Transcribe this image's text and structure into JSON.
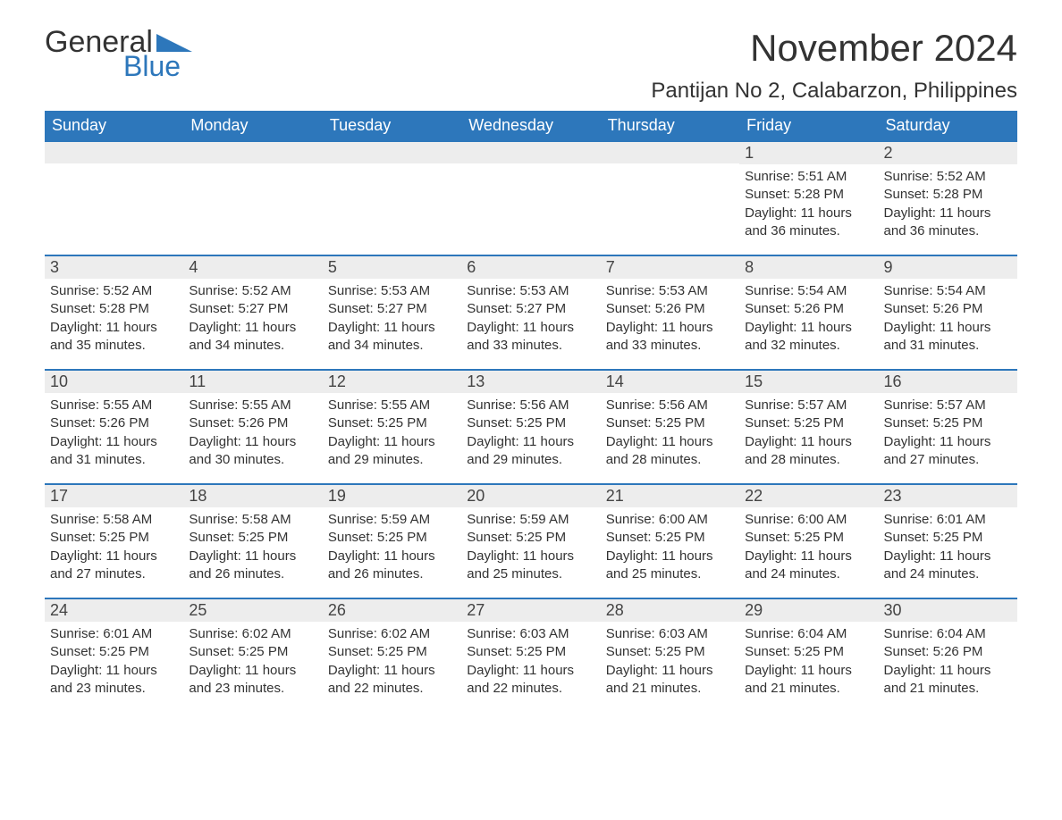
{
  "logo": {
    "text1": "General",
    "text2": "Blue",
    "accent": "#2d77bb"
  },
  "title": "November 2024",
  "location": "Pantijan No 2, Calabarzon, Philippines",
  "headers": [
    "Sunday",
    "Monday",
    "Tuesday",
    "Wednesday",
    "Thursday",
    "Friday",
    "Saturday"
  ],
  "colors": {
    "header_bg": "#2d77bb",
    "header_fg": "#ffffff",
    "daybar_bg": "#ededed",
    "daybar_border": "#2d77bb",
    "page_bg": "#ffffff",
    "text": "#333333"
  },
  "weeks": [
    [
      null,
      null,
      null,
      null,
      null,
      {
        "n": "1",
        "sunrise": "5:51 AM",
        "sunset": "5:28 PM",
        "daylight": "11 hours and 36 minutes."
      },
      {
        "n": "2",
        "sunrise": "5:52 AM",
        "sunset": "5:28 PM",
        "daylight": "11 hours and 36 minutes."
      }
    ],
    [
      {
        "n": "3",
        "sunrise": "5:52 AM",
        "sunset": "5:28 PM",
        "daylight": "11 hours and 35 minutes."
      },
      {
        "n": "4",
        "sunrise": "5:52 AM",
        "sunset": "5:27 PM",
        "daylight": "11 hours and 34 minutes."
      },
      {
        "n": "5",
        "sunrise": "5:53 AM",
        "sunset": "5:27 PM",
        "daylight": "11 hours and 34 minutes."
      },
      {
        "n": "6",
        "sunrise": "5:53 AM",
        "sunset": "5:27 PM",
        "daylight": "11 hours and 33 minutes."
      },
      {
        "n": "7",
        "sunrise": "5:53 AM",
        "sunset": "5:26 PM",
        "daylight": "11 hours and 33 minutes."
      },
      {
        "n": "8",
        "sunrise": "5:54 AM",
        "sunset": "5:26 PM",
        "daylight": "11 hours and 32 minutes."
      },
      {
        "n": "9",
        "sunrise": "5:54 AM",
        "sunset": "5:26 PM",
        "daylight": "11 hours and 31 minutes."
      }
    ],
    [
      {
        "n": "10",
        "sunrise": "5:55 AM",
        "sunset": "5:26 PM",
        "daylight": "11 hours and 31 minutes."
      },
      {
        "n": "11",
        "sunrise": "5:55 AM",
        "sunset": "5:26 PM",
        "daylight": "11 hours and 30 minutes."
      },
      {
        "n": "12",
        "sunrise": "5:55 AM",
        "sunset": "5:25 PM",
        "daylight": "11 hours and 29 minutes."
      },
      {
        "n": "13",
        "sunrise": "5:56 AM",
        "sunset": "5:25 PM",
        "daylight": "11 hours and 29 minutes."
      },
      {
        "n": "14",
        "sunrise": "5:56 AM",
        "sunset": "5:25 PM",
        "daylight": "11 hours and 28 minutes."
      },
      {
        "n": "15",
        "sunrise": "5:57 AM",
        "sunset": "5:25 PM",
        "daylight": "11 hours and 28 minutes."
      },
      {
        "n": "16",
        "sunrise": "5:57 AM",
        "sunset": "5:25 PM",
        "daylight": "11 hours and 27 minutes."
      }
    ],
    [
      {
        "n": "17",
        "sunrise": "5:58 AM",
        "sunset": "5:25 PM",
        "daylight": "11 hours and 27 minutes."
      },
      {
        "n": "18",
        "sunrise": "5:58 AM",
        "sunset": "5:25 PM",
        "daylight": "11 hours and 26 minutes."
      },
      {
        "n": "19",
        "sunrise": "5:59 AM",
        "sunset": "5:25 PM",
        "daylight": "11 hours and 26 minutes."
      },
      {
        "n": "20",
        "sunrise": "5:59 AM",
        "sunset": "5:25 PM",
        "daylight": "11 hours and 25 minutes."
      },
      {
        "n": "21",
        "sunrise": "6:00 AM",
        "sunset": "5:25 PM",
        "daylight": "11 hours and 25 minutes."
      },
      {
        "n": "22",
        "sunrise": "6:00 AM",
        "sunset": "5:25 PM",
        "daylight": "11 hours and 24 minutes."
      },
      {
        "n": "23",
        "sunrise": "6:01 AM",
        "sunset": "5:25 PM",
        "daylight": "11 hours and 24 minutes."
      }
    ],
    [
      {
        "n": "24",
        "sunrise": "6:01 AM",
        "sunset": "5:25 PM",
        "daylight": "11 hours and 23 minutes."
      },
      {
        "n": "25",
        "sunrise": "6:02 AM",
        "sunset": "5:25 PM",
        "daylight": "11 hours and 23 minutes."
      },
      {
        "n": "26",
        "sunrise": "6:02 AM",
        "sunset": "5:25 PM",
        "daylight": "11 hours and 22 minutes."
      },
      {
        "n": "27",
        "sunrise": "6:03 AM",
        "sunset": "5:25 PM",
        "daylight": "11 hours and 22 minutes."
      },
      {
        "n": "28",
        "sunrise": "6:03 AM",
        "sunset": "5:25 PM",
        "daylight": "11 hours and 21 minutes."
      },
      {
        "n": "29",
        "sunrise": "6:04 AM",
        "sunset": "5:25 PM",
        "daylight": "11 hours and 21 minutes."
      },
      {
        "n": "30",
        "sunrise": "6:04 AM",
        "sunset": "5:26 PM",
        "daylight": "11 hours and 21 minutes."
      }
    ]
  ],
  "labels": {
    "sunrise": "Sunrise: ",
    "sunset": "Sunset: ",
    "daylight": "Daylight: "
  }
}
